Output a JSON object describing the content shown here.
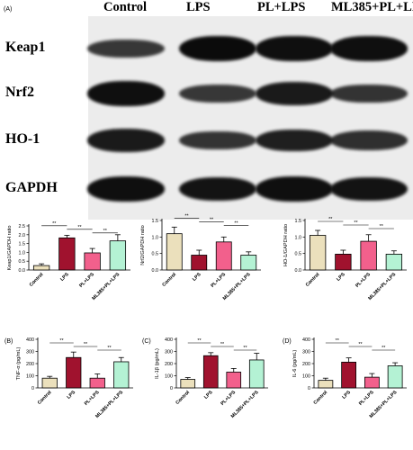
{
  "figure": {
    "panel_letter_top": "(A)",
    "blot": {
      "lanes": [
        "Control",
        "LPS",
        "PL+LPS",
        "ML385+PL+LPS"
      ],
      "rows": [
        "Keap1",
        "Nrf2",
        "HO-1",
        "GAPDH"
      ],
      "band_intensity": [
        [
          0.55,
          1.0,
          0.95,
          0.95
        ],
        [
          0.95,
          0.55,
          0.85,
          0.6
        ],
        [
          0.85,
          0.6,
          0.8,
          0.65
        ],
        [
          0.95,
          0.9,
          0.95,
          0.92
        ]
      ]
    },
    "bar_colors": [
      "#ebe0bc",
      "#a0122e",
      "#f2608c",
      "#b4f2d4"
    ]
  },
  "chart_data": [
    {
      "type": "bar",
      "panel": "",
      "categories": [
        "Control",
        "LPS",
        "PL+LPS",
        "ML385+PL+LPS"
      ],
      "values": [
        0.25,
        1.82,
        0.97,
        1.65
      ],
      "errors": [
        0.1,
        0.15,
        0.25,
        0.35
      ],
      "ylabel": "Keap1/GAPDH ratio",
      "ylim": [
        0,
        2.5
      ],
      "yticks": [
        0,
        0.5,
        1.0,
        1.5,
        2.0,
        2.5
      ],
      "significance": [
        {
          "from": 0,
          "to": 1,
          "label": "**"
        },
        {
          "from": 1,
          "to": 2,
          "label": "**"
        },
        {
          "from": 2,
          "to": 3,
          "label": "**"
        }
      ]
    },
    {
      "type": "bar",
      "panel": "",
      "categories": [
        "Control",
        "LPS",
        "PL+LPS",
        "ML385+PL+LPS"
      ],
      "values": [
        1.1,
        0.45,
        0.85,
        0.45
      ],
      "errors": [
        0.2,
        0.15,
        0.15,
        0.1
      ],
      "ylabel": "Nrf2/GAPDH ratio",
      "ylim": [
        0,
        1.5
      ],
      "yticks": [
        0.0,
        0.5,
        1.0,
        1.5
      ],
      "significance": [
        {
          "from": 0,
          "to": 1,
          "label": "**"
        },
        {
          "from": 1,
          "to": 2,
          "label": "**"
        },
        {
          "from": 2,
          "to": 3,
          "label": "**"
        }
      ]
    },
    {
      "type": "bar",
      "panel": "",
      "categories": [
        "Control",
        "LPS",
        "PL+LPS",
        "ML385+PL+LPS"
      ],
      "values": [
        1.05,
        0.48,
        0.87,
        0.48
      ],
      "errors": [
        0.15,
        0.12,
        0.2,
        0.1
      ],
      "ylabel": "HO-1/GAPDH ratio",
      "ylim": [
        0,
        1.5
      ],
      "yticks": [
        0.0,
        0.5,
        1.0,
        1.5
      ],
      "significance": [
        {
          "from": 0,
          "to": 1,
          "label": "**"
        },
        {
          "from": 1,
          "to": 2,
          "label": "**"
        },
        {
          "from": 2,
          "to": 3,
          "label": "**"
        }
      ]
    },
    {
      "type": "bar",
      "panel": "(B)",
      "categories": [
        "Control",
        "LPS",
        "PL+LPS",
        "ML385+PL+LPS"
      ],
      "values": [
        80,
        250,
        80,
        215
      ],
      "errors": [
        15,
        45,
        35,
        35
      ],
      "ylabel": "TNF-α (pg/mL)",
      "ylim": [
        0,
        400
      ],
      "yticks": [
        0,
        100,
        200,
        300,
        400
      ],
      "significance": [
        {
          "from": 0,
          "to": 1,
          "label": "**"
        },
        {
          "from": 1,
          "to": 2,
          "label": "**"
        },
        {
          "from": 2,
          "to": 3,
          "label": "**"
        }
      ]
    },
    {
      "type": "bar",
      "panel": "(C)",
      "categories": [
        "Control",
        "LPS",
        "PL+LPS",
        "ML385+PL+LPS"
      ],
      "values": [
        70,
        265,
        130,
        230
      ],
      "errors": [
        15,
        25,
        30,
        55
      ],
      "ylabel": "IL-1β (pg/mL)",
      "ylim": [
        0,
        400
      ],
      "yticks": [
        0,
        100,
        200,
        300,
        400
      ],
      "significance": [
        {
          "from": 0,
          "to": 1,
          "label": "**"
        },
        {
          "from": 1,
          "to": 2,
          "label": "**"
        },
        {
          "from": 2,
          "to": 3,
          "label": "**"
        }
      ]
    },
    {
      "type": "bar",
      "panel": "(D)",
      "categories": [
        "Control",
        "LPS",
        "PL+LPS",
        "ML385+PL+LPS"
      ],
      "values": [
        62,
        212,
        88,
        182
      ],
      "errors": [
        18,
        35,
        30,
        25
      ],
      "ylabel": "IL-6 (pg/mL)",
      "ylim": [
        0,
        400
      ],
      "yticks": [
        0,
        100,
        200,
        300,
        400
      ],
      "significance": [
        {
          "from": 0,
          "to": 1,
          "label": "**"
        },
        {
          "from": 1,
          "to": 2,
          "label": "**"
        },
        {
          "from": 2,
          "to": 3,
          "label": "**"
        }
      ]
    }
  ]
}
